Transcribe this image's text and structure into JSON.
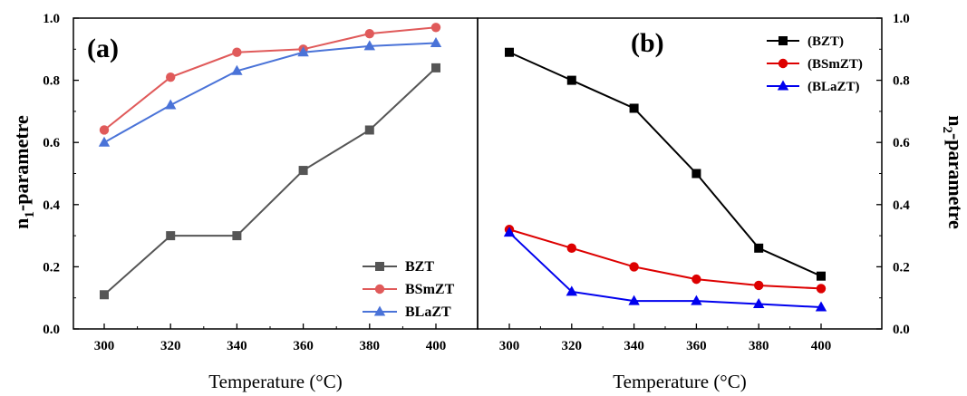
{
  "chart_data": [
    {
      "type": "line",
      "panel_label": "(a)",
      "xlabel": "Temperature (°C)",
      "ylabel_main": "n",
      "ylabel_sub": "1",
      "ylabel_rest": "-parametre",
      "x": [
        300,
        320,
        340,
        360,
        380,
        400
      ],
      "xlim": [
        290,
        410
      ],
      "ylim": [
        0.0,
        1.0
      ],
      "xticks": [
        "300",
        "320",
        "340",
        "360",
        "380",
        "400"
      ],
      "yticks": [
        "0.0",
        "0.2",
        "0.4",
        "0.6",
        "0.8",
        "1.0"
      ],
      "grid": false,
      "legend_position": "bottom-right",
      "series": [
        {
          "name": "BZT",
          "values": [
            0.11,
            0.3,
            0.3,
            0.51,
            0.64,
            0.84
          ],
          "color": "#555555",
          "marker": "square"
        },
        {
          "name": "BSmZT",
          "values": [
            0.64,
            0.81,
            0.89,
            0.9,
            0.95,
            0.97
          ],
          "color": "#e05a5a",
          "marker": "circle"
        },
        {
          "name": "BLaZT",
          "values": [
            0.6,
            0.72,
            0.83,
            0.89,
            0.91,
            0.92
          ],
          "color": "#4a73d8",
          "marker": "triangle"
        }
      ]
    },
    {
      "type": "line",
      "panel_label": "(b)",
      "xlabel": "Temperature (°C)",
      "ylabel_main": "n",
      "ylabel_sub": "2",
      "ylabel_rest": "-parametre",
      "x": [
        300,
        320,
        340,
        360,
        380,
        400
      ],
      "xlim": [
        280,
        420
      ],
      "ylim": [
        0.0,
        1.0
      ],
      "xticks": [
        "300",
        "320",
        "340",
        "360",
        "380",
        "400"
      ],
      "yticks": [
        "0.0",
        "0.2",
        "0.4",
        "0.6",
        "0.8",
        "1.0"
      ],
      "grid": false,
      "legend_position": "top-right",
      "series": [
        {
          "name": "(BZT)",
          "values": [
            0.89,
            0.8,
            0.71,
            0.5,
            0.26,
            0.17
          ],
          "color": "#000000",
          "marker": "square"
        },
        {
          "name": "(BSmZT)",
          "values": [
            0.32,
            0.26,
            0.2,
            0.16,
            0.14,
            0.13
          ],
          "color": "#dd0000",
          "marker": "circle"
        },
        {
          "name": "(BLaZT)",
          "values": [
            0.31,
            0.12,
            0.09,
            0.09,
            0.08,
            0.07
          ],
          "color": "#0000ee",
          "marker": "triangle"
        }
      ]
    }
  ]
}
